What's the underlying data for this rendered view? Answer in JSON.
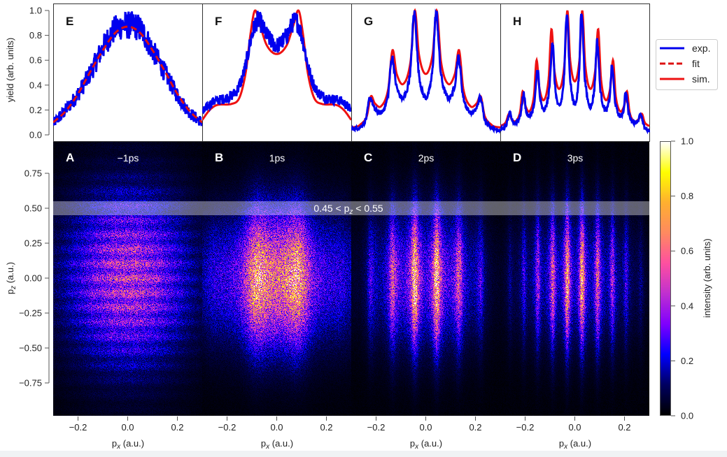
{
  "chart_data": {
    "type": "line+heatmap",
    "colors": {
      "exp": "#0000ee",
      "fit": "#dd1111",
      "sim": "#ee1111"
    },
    "legend": {
      "placement": "right",
      "entries": [
        {
          "label": "exp.",
          "style": "solid",
          "series": "exp"
        },
        {
          "label": "fit",
          "style": "dashed",
          "series": "fit"
        },
        {
          "label": "sim.",
          "style": "solid",
          "series": "sim"
        }
      ]
    },
    "top_ylabel": "yield (arb. units)",
    "top_ylim": [
      0,
      1
    ],
    "top_yticks": [
      "0.0",
      "0.2",
      "0.4",
      "0.6",
      "0.8",
      "1.0"
    ],
    "xlim": [
      -0.3,
      0.3
    ],
    "xticks": [
      "-0.2",
      "0.0",
      "0.2"
    ],
    "xlabel": "p",
    "xlabel_sub": "x",
    "xlabel_unit": " (a.u.)",
    "bottom_ylabel": "p",
    "bottom_ylabel_sub": "z",
    "bottom_ylabel_unit": " (a.u.)",
    "bottom_ylim": [
      -0.98,
      0.98
    ],
    "bottom_yticks": [
      "0.75",
      "0.50",
      "0.25",
      "0.00",
      "-0.25",
      "-0.50",
      "-0.75"
    ],
    "band": {
      "pz_min": 0.45,
      "pz_max": 0.55,
      "label_pre": "0.45 < p",
      "label_sub": "z",
      "label_post": " < 0.55"
    },
    "colorbar": {
      "label": "intensity (arb. units)",
      "range": [
        0,
        1
      ],
      "ticks": [
        "0.0",
        "0.2",
        "0.4",
        "0.6",
        "0.8",
        "1.0"
      ],
      "colormap": [
        "#000000",
        "#000060",
        "#0000ff",
        "#8000ff",
        "#c030d0",
        "#ff50a0",
        "#ff8a60",
        "#ffb030",
        "#ffff00",
        "#ffffff"
      ]
    },
    "line_panels": [
      {
        "label": "E",
        "model": "fit",
        "shape": "smooth",
        "model_points": [
          [
            -0.3,
            0.1
          ],
          [
            -0.25,
            0.19
          ],
          [
            -0.2,
            0.33
          ],
          [
            -0.15,
            0.51
          ],
          [
            -0.1,
            0.68
          ],
          [
            -0.05,
            0.82
          ],
          [
            0,
            0.87
          ],
          [
            0.05,
            0.82
          ],
          [
            0.1,
            0.68
          ],
          [
            0.15,
            0.51
          ],
          [
            0.2,
            0.33
          ],
          [
            0.25,
            0.19
          ],
          [
            0.3,
            0.1
          ]
        ],
        "exp_points": [
          [
            -0.3,
            0.09
          ],
          [
            -0.25,
            0.2
          ],
          [
            -0.2,
            0.33
          ],
          [
            -0.15,
            0.5
          ],
          [
            -0.1,
            0.7
          ],
          [
            -0.05,
            0.85
          ],
          [
            0,
            0.88
          ],
          [
            0.05,
            0.85
          ],
          [
            0.1,
            0.68
          ],
          [
            0.15,
            0.5
          ],
          [
            0.2,
            0.32
          ],
          [
            0.25,
            0.18
          ],
          [
            0.3,
            0.1
          ]
        ],
        "exp_noise": 0.09
      },
      {
        "label": "F",
        "model": "sim",
        "shape": "smooth",
        "model_points": [
          [
            -0.3,
            0.12
          ],
          [
            -0.27,
            0.2
          ],
          [
            -0.24,
            0.24
          ],
          [
            -0.18,
            0.25
          ],
          [
            -0.15,
            0.3
          ],
          [
            -0.125,
            0.5
          ],
          [
            -0.105,
            0.82
          ],
          [
            -0.088,
            1.0
          ],
          [
            -0.07,
            0.9
          ],
          [
            -0.04,
            0.72
          ],
          [
            0,
            0.65
          ],
          [
            0.04,
            0.72
          ],
          [
            0.07,
            0.9
          ],
          [
            0.088,
            1.0
          ],
          [
            0.105,
            0.82
          ],
          [
            0.125,
            0.5
          ],
          [
            0.15,
            0.3
          ],
          [
            0.18,
            0.25
          ],
          [
            0.24,
            0.24
          ],
          [
            0.27,
            0.2
          ],
          [
            0.3,
            0.12
          ]
        ],
        "exp_points": [
          [
            -0.3,
            0.18
          ],
          [
            -0.26,
            0.26
          ],
          [
            -0.2,
            0.3
          ],
          [
            -0.16,
            0.36
          ],
          [
            -0.13,
            0.52
          ],
          [
            -0.1,
            0.8
          ],
          [
            -0.075,
            0.92
          ],
          [
            -0.04,
            0.8
          ],
          [
            0,
            0.72
          ],
          [
            0.04,
            0.8
          ],
          [
            0.075,
            0.92
          ],
          [
            0.1,
            0.8
          ],
          [
            0.13,
            0.52
          ],
          [
            0.16,
            0.36
          ],
          [
            0.2,
            0.3
          ],
          [
            0.26,
            0.27
          ],
          [
            0.3,
            0.2
          ]
        ],
        "exp_noise": 0.06
      },
      {
        "label": "G",
        "model": "sim",
        "shape": "peaked",
        "model_points": [
          [
            -0.3,
            0.06
          ],
          [
            -0.265,
            0.08
          ],
          [
            -0.221,
            0.31
          ],
          [
            -0.18,
            0.23
          ],
          [
            -0.134,
            0.68
          ],
          [
            -0.09,
            0.41
          ],
          [
            -0.044,
            1.0
          ],
          [
            0,
            0.49
          ],
          [
            0.044,
            1.0
          ],
          [
            0.09,
            0.41
          ],
          [
            0.134,
            0.68
          ],
          [
            0.18,
            0.23
          ],
          [
            0.221,
            0.31
          ],
          [
            0.265,
            0.08
          ],
          [
            0.3,
            0.06
          ]
        ],
        "exp_points": [
          [
            -0.3,
            0.05
          ],
          [
            -0.265,
            0.06
          ],
          [
            -0.225,
            0.3
          ],
          [
            -0.18,
            0.18
          ],
          [
            -0.136,
            0.62
          ],
          [
            -0.09,
            0.3
          ],
          [
            -0.046,
            0.98
          ],
          [
            0,
            0.3
          ],
          [
            0.042,
            0.98
          ],
          [
            0.09,
            0.3
          ],
          [
            0.132,
            0.62
          ],
          [
            0.18,
            0.18
          ],
          [
            0.22,
            0.3
          ],
          [
            0.265,
            0.06
          ],
          [
            0.3,
            0.04
          ]
        ],
        "exp_noise": 0.03
      },
      {
        "label": "H",
        "model": "sim",
        "shape": "peaked",
        "model_points": [
          [
            -0.3,
            0.07
          ],
          [
            -0.265,
            0.17
          ],
          [
            -0.238,
            0.11
          ],
          [
            -0.21,
            0.35
          ],
          [
            -0.182,
            0.19
          ],
          [
            -0.154,
            0.6
          ],
          [
            -0.124,
            0.28
          ],
          [
            -0.094,
            0.85
          ],
          [
            -0.062,
            0.37
          ],
          [
            -0.03,
            1.0
          ],
          [
            0,
            0.43
          ],
          [
            0.03,
            1.0
          ],
          [
            0.062,
            0.37
          ],
          [
            0.094,
            0.85
          ],
          [
            0.124,
            0.28
          ],
          [
            0.154,
            0.6
          ],
          [
            0.182,
            0.19
          ],
          [
            0.21,
            0.35
          ],
          [
            0.238,
            0.11
          ],
          [
            0.27,
            0.17
          ],
          [
            0.3,
            0.07
          ]
        ],
        "exp_points": [
          [
            -0.3,
            0.04
          ],
          [
            -0.262,
            0.17
          ],
          [
            -0.238,
            0.1
          ],
          [
            -0.206,
            0.33
          ],
          [
            -0.182,
            0.15
          ],
          [
            -0.15,
            0.53
          ],
          [
            -0.124,
            0.2
          ],
          [
            -0.09,
            0.75
          ],
          [
            -0.062,
            0.23
          ],
          [
            -0.032,
            1.0
          ],
          [
            0,
            0.25
          ],
          [
            0.027,
            1.0
          ],
          [
            0.062,
            0.23
          ],
          [
            0.09,
            0.75
          ],
          [
            0.124,
            0.2
          ],
          [
            0.15,
            0.55
          ],
          [
            0.182,
            0.15
          ],
          [
            0.205,
            0.34
          ],
          [
            0.238,
            0.1
          ],
          [
            0.265,
            0.16
          ],
          [
            0.3,
            0.03
          ]
        ],
        "exp_noise": 0.03
      }
    ],
    "heatmap_panels": [
      {
        "label": "A",
        "delay": "-1ps",
        "max_intensity": 0.5
      },
      {
        "label": "B",
        "delay": "1ps",
        "max_intensity": 0.8
      },
      {
        "label": "C",
        "delay": "2ps",
        "max_intensity": 0.85
      },
      {
        "label": "D",
        "delay": "3ps",
        "max_intensity": 0.75
      }
    ]
  }
}
